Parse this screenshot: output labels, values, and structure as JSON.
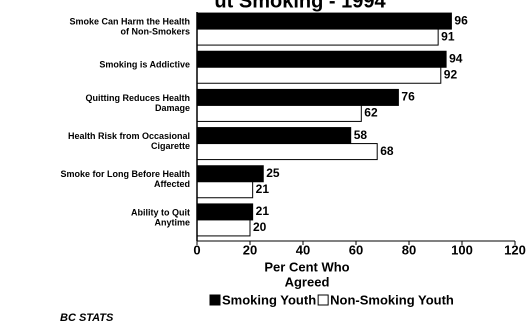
{
  "chart_data": {
    "type": "hbar",
    "title": "ut Smoking - 1994",
    "categories": [
      [
        "Smoke Can Harm the Health",
        "of Non-Smokers"
      ],
      [
        "Smoking is Addictive"
      ],
      [
        "Quitting Reduces Health",
        "Damage"
      ],
      [
        "Health Risk from Occasional",
        "Cigarette"
      ],
      [
        "Smoke for Long Before Health",
        "Affected"
      ],
      [
        "Ability to Quit",
        "Anytime"
      ]
    ],
    "series": [
      {
        "name": "Smoking Youth",
        "color": "#000000",
        "values": [
          96,
          94,
          76,
          58,
          25,
          21
        ]
      },
      {
        "name": "Non-Smoking Youth",
        "color": "#ffffff",
        "values": [
          91,
          92,
          62,
          68,
          21,
          20
        ]
      }
    ],
    "xlim": [
      0,
      120
    ],
    "xticks": [
      0,
      20,
      40,
      60,
      80,
      100,
      120
    ],
    "xlabel": [
      "Per Cent Who",
      "Agreed"
    ],
    "source": "BC STATS"
  }
}
